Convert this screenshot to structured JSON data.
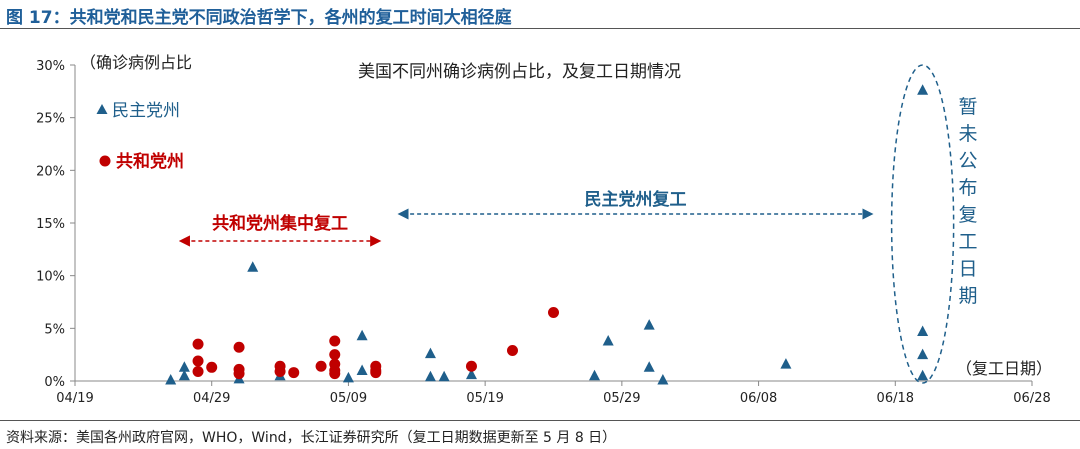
{
  "figure_title": "图 17：共和党和民主党不同政治哲学下，各州的复工时间大相径庭",
  "source_note": "资料来源：美国各州政府官网，WHO，Wind，长江证券研究所（复工日期数据更新至 5 月 8 日）",
  "colors": {
    "title": "#1f5f99",
    "democrat": "#1f5f8b",
    "republican": "#c00000",
    "axis": "#888888"
  },
  "chart_data": {
    "type": "scatter",
    "title": "美国不同州确诊病例占比，及复工日期情况",
    "ylabel": "（确诊病例占比",
    "xlabel": "（复工日期）",
    "y_unit": "%",
    "ylim": [
      0,
      30
    ],
    "y_ticks": [
      0,
      5,
      10,
      15,
      20,
      25,
      30
    ],
    "y_tick_labels": [
      "0%",
      "5%",
      "10%",
      "15%",
      "20%",
      "25%",
      "30%"
    ],
    "x_ticks": [
      "2020-04-19",
      "2020-04-29",
      "2020-05-09",
      "2020-05-19",
      "2020-05-29",
      "2020-06-08",
      "2020-06-18",
      "2020-06-28"
    ],
    "x_tick_labels": [
      "04/19",
      "04/29",
      "05/09",
      "05/19",
      "05/29",
      "06/08",
      "06/18",
      "06/28"
    ],
    "xlim": [
      "2020-04-19",
      "2020-06-28"
    ],
    "legend": [
      {
        "series": "democrat",
        "label": "民主党州",
        "marker": "triangle"
      },
      {
        "series": "republican",
        "label": "共和党州",
        "marker": "circle"
      }
    ],
    "annotations": {
      "republican_range": {
        "label": "共和党州集中复工",
        "from": "2020-04-27",
        "to": "2020-05-11"
      },
      "democrat_range": {
        "label": "民主党州复工",
        "from": "2020-05-13",
        "to": "2020-06-16"
      },
      "undisclosed": {
        "label": "暂未公布复工日期",
        "date": "2020-06-20"
      }
    },
    "series": [
      {
        "name": "民主党州",
        "key": "democrat",
        "marker": "triangle",
        "points": [
          {
            "x": "2020-04-26",
            "y": 0.1
          },
          {
            "x": "2020-04-27",
            "y": 0.5
          },
          {
            "x": "2020-04-27",
            "y": 1.3
          },
          {
            "x": "2020-05-01",
            "y": 0.2
          },
          {
            "x": "2020-05-02",
            "y": 10.8
          },
          {
            "x": "2020-05-04",
            "y": 0.5
          },
          {
            "x": "2020-05-09",
            "y": 0.3
          },
          {
            "x": "2020-05-10",
            "y": 4.3
          },
          {
            "x": "2020-05-10",
            "y": 1.0
          },
          {
            "x": "2020-05-15",
            "y": 2.6
          },
          {
            "x": "2020-05-15",
            "y": 0.4
          },
          {
            "x": "2020-05-16",
            "y": 0.4
          },
          {
            "x": "2020-05-18",
            "y": 0.6
          },
          {
            "x": "2020-05-27",
            "y": 0.5
          },
          {
            "x": "2020-05-28",
            "y": 3.8
          },
          {
            "x": "2020-05-31",
            "y": 5.3
          },
          {
            "x": "2020-05-31",
            "y": 1.3
          },
          {
            "x": "2020-06-01",
            "y": 0.1
          },
          {
            "x": "2020-06-10",
            "y": 1.6
          },
          {
            "x": "2020-06-20",
            "y": 27.6
          },
          {
            "x": "2020-06-20",
            "y": 4.7
          },
          {
            "x": "2020-06-20",
            "y": 2.5
          },
          {
            "x": "2020-06-20",
            "y": 0.5
          }
        ]
      },
      {
        "name": "共和党州",
        "key": "republican",
        "marker": "circle",
        "points": [
          {
            "x": "2020-04-28",
            "y": 3.5
          },
          {
            "x": "2020-04-28",
            "y": 1.9
          },
          {
            "x": "2020-04-28",
            "y": 0.9
          },
          {
            "x": "2020-04-29",
            "y": 1.3
          },
          {
            "x": "2020-05-01",
            "y": 3.2
          },
          {
            "x": "2020-05-01",
            "y": 1.1
          },
          {
            "x": "2020-05-01",
            "y": 0.7
          },
          {
            "x": "2020-05-04",
            "y": 1.4
          },
          {
            "x": "2020-05-04",
            "y": 0.9
          },
          {
            "x": "2020-05-05",
            "y": 0.8
          },
          {
            "x": "2020-05-07",
            "y": 1.4
          },
          {
            "x": "2020-05-08",
            "y": 3.8
          },
          {
            "x": "2020-05-08",
            "y": 2.5
          },
          {
            "x": "2020-05-08",
            "y": 1.6
          },
          {
            "x": "2020-05-08",
            "y": 1.0
          },
          {
            "x": "2020-05-08",
            "y": 0.7
          },
          {
            "x": "2020-05-11",
            "y": 1.4
          },
          {
            "x": "2020-05-11",
            "y": 1.0
          },
          {
            "x": "2020-05-11",
            "y": 0.8
          },
          {
            "x": "2020-05-18",
            "y": 1.4
          },
          {
            "x": "2020-05-21",
            "y": 2.9
          },
          {
            "x": "2020-05-24",
            "y": 6.5
          }
        ]
      }
    ]
  }
}
